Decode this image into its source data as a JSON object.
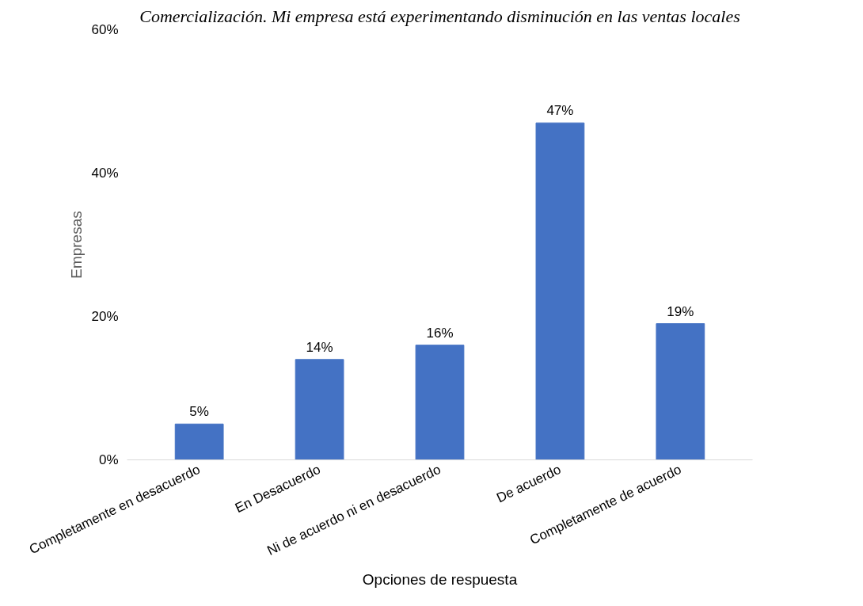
{
  "chart_data": {
    "type": "bar",
    "title": "Comercialización. Mi empresa está experimentando disminución en las ventas locales",
    "xlabel": "Opciones de respuesta",
    "ylabel": "Empresas",
    "categories": [
      "Completamente en desacuerdo",
      "En Desacuerdo",
      "Ni de acuerdo ni en desacuerdo",
      "De acuerdo",
      "Completamente de acuerdo"
    ],
    "values": [
      5,
      14,
      16,
      47,
      19
    ],
    "value_labels": [
      "5%",
      "14%",
      "16%",
      "47%",
      "19%"
    ],
    "color": "#4472c4",
    "ylim": [
      0,
      60
    ],
    "yticks": [
      {
        "value": 0,
        "label": "0%"
      },
      {
        "value": 20,
        "label": "20%"
      },
      {
        "value": 40,
        "label": "40%"
      },
      {
        "value": 60,
        "label": "60%"
      }
    ],
    "grid": false
  }
}
